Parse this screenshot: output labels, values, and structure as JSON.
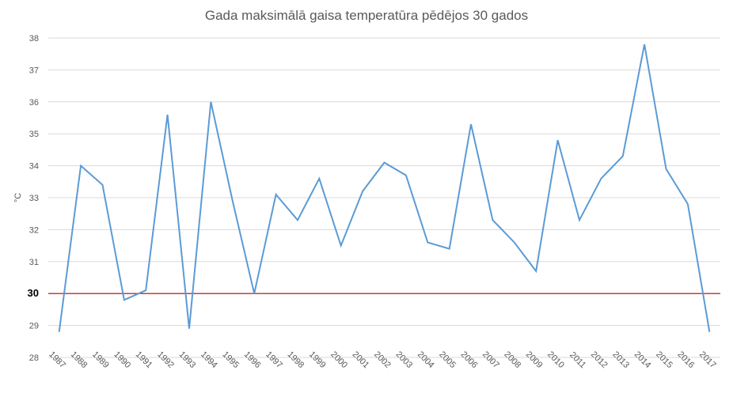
{
  "chart_data": {
    "type": "line",
    "title": "Gada maksimālā gaisa temperatūra pēdējos 30 gados",
    "xlabel": "",
    "ylabel": "°C",
    "ylim": [
      28,
      38
    ],
    "yticks": [
      28,
      29,
      30,
      31,
      32,
      33,
      34,
      35,
      36,
      37,
      38
    ],
    "grid": true,
    "categories": [
      "1987",
      "1988",
      "1989",
      "1990",
      "1991",
      "1992",
      "1993",
      "1994",
      "1995",
      "1996",
      "1997",
      "1998",
      "1999",
      "2000",
      "2001",
      "2002",
      "2003",
      "2004",
      "2005",
      "2006",
      "2007",
      "2008",
      "2009",
      "2010",
      "2011",
      "2012",
      "2013",
      "2014",
      "2015",
      "2016",
      "2017"
    ],
    "series": [
      {
        "values": [
          28.8,
          34.0,
          33.4,
          29.8,
          30.1,
          35.6,
          28.9,
          36.0,
          32.9,
          30.0,
          33.1,
          32.3,
          33.6,
          31.5,
          33.2,
          34.1,
          33.7,
          31.6,
          31.4,
          35.3,
          32.3,
          31.6,
          30.7,
          34.8,
          32.3,
          33.6,
          34.3,
          37.8,
          33.9,
          32.8,
          28.8
        ],
        "color": "#5b9bd5"
      }
    ],
    "reference_line": {
      "value": 30,
      "color": "#c00000"
    },
    "colors": {
      "grid": "#d9d9d9",
      "axis": "#d9d9d9",
      "text": "#595959"
    }
  }
}
